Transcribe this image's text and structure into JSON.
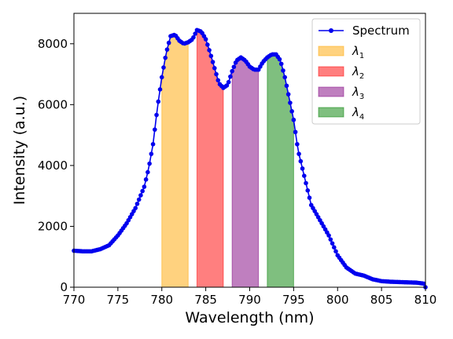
{
  "chart_data": {
    "type": "line",
    "xlabel": "Wavelength (nm)",
    "ylabel": "Intensity (a.u.)",
    "xlim": [
      770,
      810
    ],
    "ylim": [
      0,
      9000
    ],
    "xticks": [
      "770",
      "775",
      "780",
      "785",
      "790",
      "795",
      "800",
      "805",
      "810"
    ],
    "yticks": [
      "0",
      "2000",
      "4000",
      "6000",
      "8000"
    ],
    "legend_position": "top-right",
    "grid": false,
    "series": [
      {
        "name": "Spectrum",
        "color": "#0000ee",
        "marker": "circle",
        "x": [
          770,
          771,
          772,
          773,
          774,
          775,
          776,
          777,
          778,
          778.5,
          779,
          779.5,
          780,
          780.5,
          781,
          781.5,
          782,
          782.5,
          783,
          783.5,
          784,
          784.5,
          785,
          785.5,
          786,
          786.5,
          787,
          787.5,
          788,
          788.5,
          789,
          789.5,
          790,
          790.5,
          791,
          791.5,
          792,
          792.5,
          793,
          793.5,
          794,
          794.5,
          795,
          795.5,
          796,
          797,
          798,
          799,
          800,
          801,
          802,
          803,
          804,
          805,
          806,
          807,
          808,
          809,
          810
        ],
        "y": [
          1200,
          1180,
          1180,
          1250,
          1380,
          1700,
          2100,
          2600,
          3300,
          3900,
          4700,
          5900,
          6900,
          7700,
          8250,
          8300,
          8100,
          8000,
          8050,
          8150,
          8450,
          8400,
          8150,
          7700,
          7200,
          6700,
          6550,
          6650,
          7100,
          7450,
          7550,
          7450,
          7250,
          7150,
          7150,
          7400,
          7550,
          7650,
          7650,
          7450,
          6900,
          6200,
          5500,
          4500,
          3900,
          2700,
          2200,
          1700,
          1050,
          650,
          450,
          380,
          260,
          200,
          180,
          170,
          160,
          150,
          110
        ]
      }
    ],
    "bands": [
      {
        "name": "λ1",
        "sym": "λ",
        "sub": "1",
        "x0": 780,
        "x1": 783,
        "color": "#ffa500"
      },
      {
        "name": "λ2",
        "sym": "λ",
        "sub": "2",
        "x0": 784,
        "x1": 787,
        "color": "#ff0000"
      },
      {
        "name": "λ3",
        "sym": "λ",
        "sub": "3",
        "x0": 788,
        "x1": 791,
        "color": "#800080"
      },
      {
        "name": "λ4",
        "sym": "λ",
        "sub": "4",
        "x0": 792,
        "x1": 795,
        "color": "#008000"
      }
    ]
  }
}
